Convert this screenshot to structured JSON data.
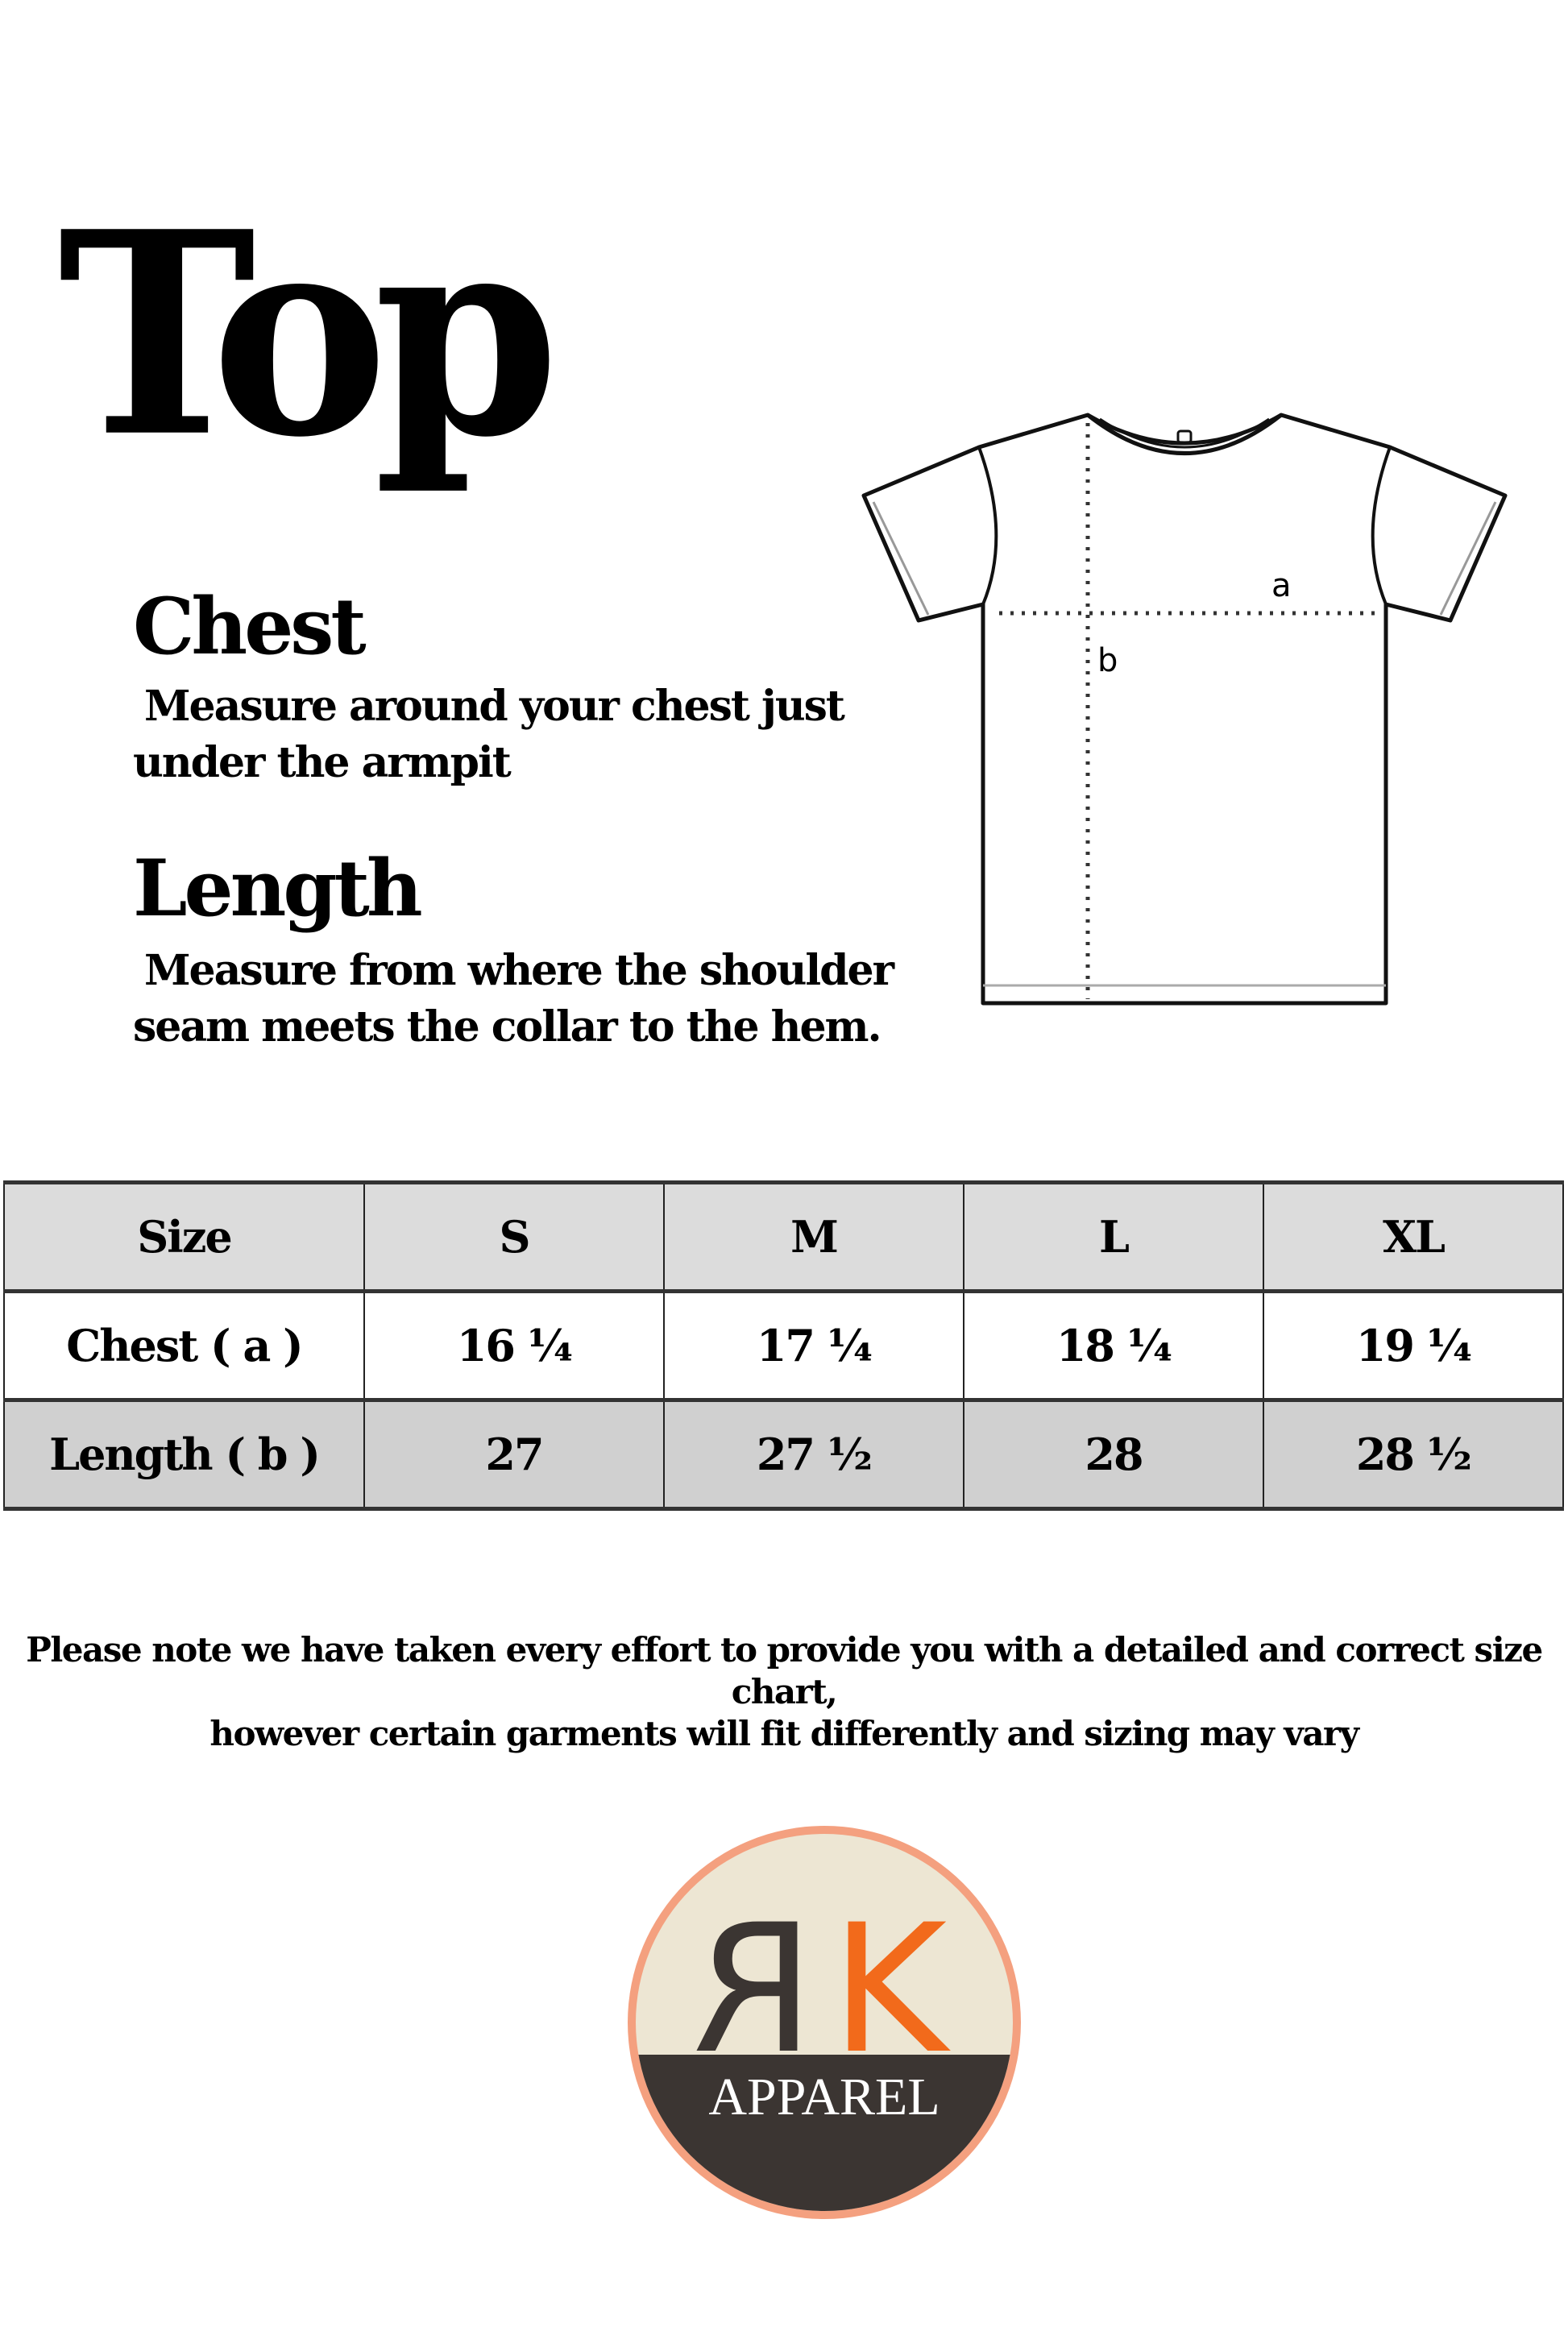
{
  "title": "Top",
  "chest": {
    "heading": "Chest",
    "description_line1": "Measure around your chest just",
    "description_line2": "under the armpit"
  },
  "length": {
    "heading": "Length",
    "description_line1": "Measure from where the shoulder",
    "description_line2": "seam meets the collar to the hem."
  },
  "diagram": {
    "label_a": "a",
    "label_b": "b"
  },
  "size_table": {
    "headers": [
      "Size",
      "S",
      "M",
      "L",
      "XL"
    ],
    "rows": [
      {
        "label": "Chest ( a )",
        "values": [
          "16 ¼",
          "17 ¼",
          "18 ¼",
          "19 ¼"
        ]
      },
      {
        "label": "Length ( b )",
        "values": [
          "27",
          "27 ½",
          "28",
          "28 ½"
        ]
      }
    ]
  },
  "note": {
    "line1": "Please note we have taken every effort to provide you with a detailed and correct size chart,",
    "line2": "however certain garments will fit differently and sizing may vary"
  },
  "logo": {
    "letters": "ЯK",
    "text": "APPAREL",
    "colors": {
      "ring": "#f4a07f",
      "k": "#f26a1b",
      "dark": "#3b3532",
      "canvas": "#ede6d3"
    }
  }
}
